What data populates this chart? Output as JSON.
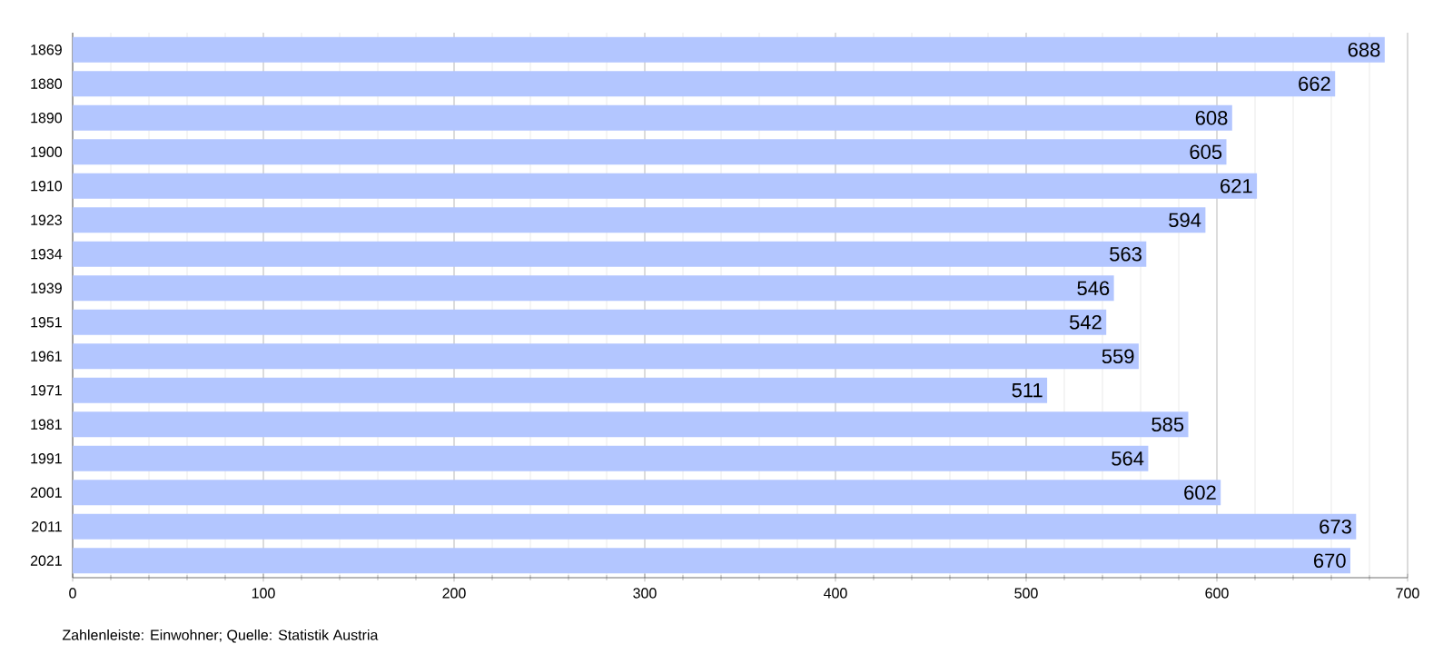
{
  "chart_data": {
    "type": "bar",
    "orientation": "horizontal",
    "categories": [
      "1869",
      "1880",
      "1890",
      "1900",
      "1910",
      "1923",
      "1934",
      "1939",
      "1951",
      "1961",
      "1971",
      "1981",
      "1991",
      "2001",
      "2011",
      "2021"
    ],
    "values": [
      688,
      662,
      608,
      605,
      621,
      594,
      563,
      546,
      542,
      559,
      511,
      585,
      564,
      602,
      673,
      670
    ],
    "color": "#b3c6ff",
    "data_labels": true,
    "grid": "x",
    "xlim": [
      0,
      700
    ],
    "xticks": [
      0,
      100,
      200,
      300,
      400,
      500,
      600,
      700
    ],
    "annotations": [
      "Zahlenleiste: Einwohner; Quelle: Statistik Austria"
    ]
  }
}
